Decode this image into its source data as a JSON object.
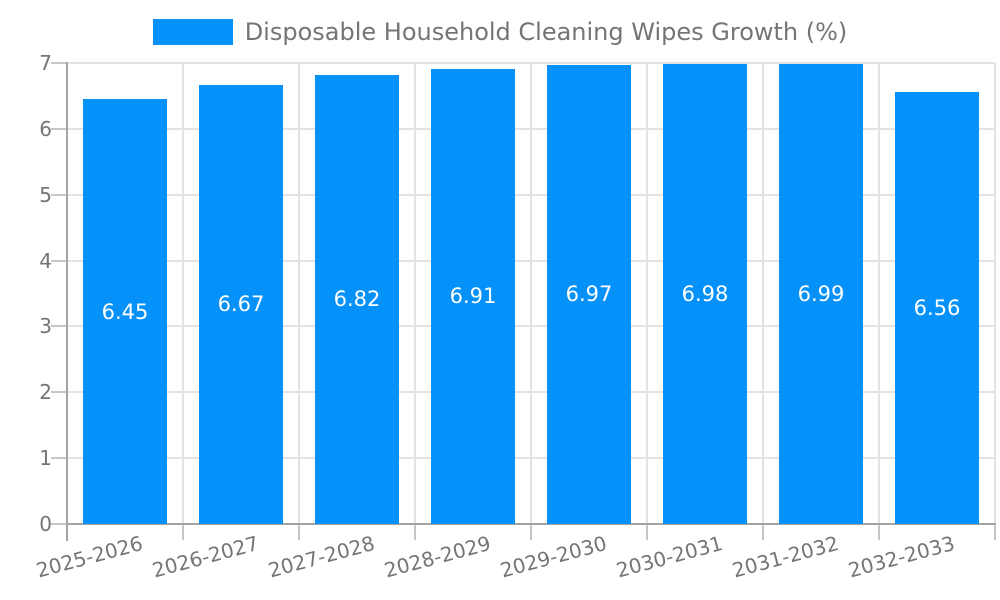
{
  "chart_data": {
    "type": "bar",
    "title": "Disposable Household Cleaning Wipes Growth (%)",
    "categories": [
      "2025-2026",
      "2026-2027",
      "2027-2028",
      "2028-2029",
      "2029-2030",
      "2030-2031",
      "2031-2032",
      "2032-2033"
    ],
    "values": [
      6.45,
      6.67,
      6.82,
      6.91,
      6.97,
      6.98,
      6.99,
      6.56
    ],
    "value_labels": [
      "6.45",
      "6.67",
      "6.82",
      "6.91",
      "6.97",
      "6.98",
      "6.99",
      "6.56"
    ],
    "xlabel": "",
    "ylabel": "",
    "ylim": [
      0,
      7
    ],
    "yticks": [
      0,
      1,
      2,
      3,
      4,
      5,
      6,
      7
    ],
    "grid": true,
    "legend_position": "top",
    "bar_color": "#0591fa",
    "value_label_color": "#ffffff",
    "axis_text_color": "#757575",
    "grid_color": "#e3e3e3",
    "axis_line_color": "#a3a3a3",
    "tick_color": "#c6c6c6",
    "background_color": "#ffffff"
  }
}
